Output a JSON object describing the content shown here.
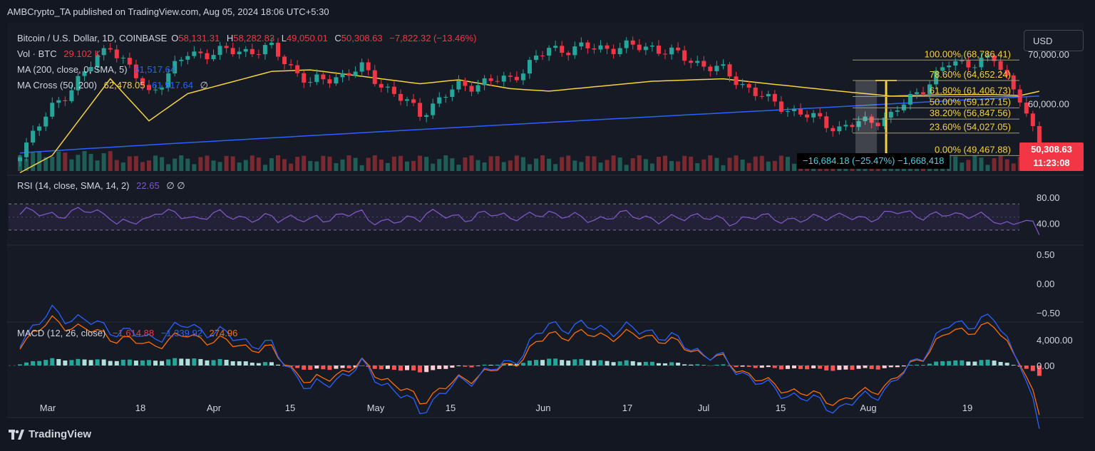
{
  "header": {
    "publisher": "AMBCrypto_TA published on TradingView.com, Aug 05, 2024 18:06 UTC+5:30"
  },
  "currency_button": "USD",
  "legend": {
    "symbol": "Bitcoin / U.S. Dollar, 1D, COINBASE",
    "o_label": "O",
    "o": "58,131.31",
    "h_label": "H",
    "h": "58,282.83",
    "l_label": "L",
    "l": "49,050.01",
    "c_label": "C",
    "c": "50,308.63",
    "change": "−7,822.32 (−13.46%)",
    "vol_label": "Vol · BTC",
    "vol": "29.102 K",
    "ma_label": "MA (200, close, 0, SMA, 5)",
    "ma": "61,517.64",
    "macross_label": "MA Cross (50, 200)",
    "macross_fast": "62,478.05",
    "macross_slow": "61,517.64",
    "macross_extra": "∅",
    "rsi_label": "RSI (14, close, SMA, 14, 2)",
    "rsi": "22.65",
    "rsi_extra": "∅ ∅",
    "macd_label": "MACD (12, 26, close)",
    "macd_hist": "−1,614.88",
    "macd_line": "−1,339.92",
    "macd_signal": "274.96"
  },
  "price_tag": {
    "price": "50,308.63",
    "countdown": "11:23:08"
  },
  "measure_label": "−16,684.18 (−25.47%) −1,668,418",
  "footer": {
    "brand": "TradingView"
  },
  "colors": {
    "up": "#26a69a",
    "down": "#f23645",
    "ma_yellow": "#f7d23e",
    "ma_blue": "#2962ff",
    "rsi": "#7e57c2",
    "macd": "#2962ff",
    "signal": "#ff6d00",
    "fib": "#f7d23e"
  },
  "chart_data": {
    "type": "candlestick",
    "title": "Bitcoin / U.S. Dollar, 1D, COINBASE",
    "price_axis": {
      "ticks": [
        70000,
        60000
      ],
      "tick_labels": [
        "70,000.00",
        "60,000.00"
      ],
      "range": [
        47500,
        72000
      ]
    },
    "x_ticks": [
      "Mar",
      "18",
      "Apr",
      "15",
      "May",
      "15",
      "Jun",
      "17",
      "Jul",
      "15",
      "Aug",
      "19"
    ],
    "price_anchors": [
      [
        "Feb 29",
        50500,
        46000
      ],
      [
        "Mar 5",
        59000,
        49500
      ],
      [
        "Mar 14",
        72000,
        65000
      ],
      [
        "Mar 20",
        62000,
        56500
      ],
      [
        "Mar 26",
        70000,
        62000
      ],
      [
        "Apr 8",
        71000,
        66500
      ],
      [
        "Apr 14",
        64000,
        66800
      ],
      [
        "Apr 22",
        67000,
        65500
      ],
      [
        "May 1",
        58000,
        64000
      ],
      [
        "May 7",
        63500,
        64800
      ],
      [
        "May 15",
        65000,
        63000
      ],
      [
        "May 21",
        71000,
        62500
      ],
      [
        "Jun 6",
        71500,
        64500
      ],
      [
        "Jun 17",
        66500,
        65000
      ],
      [
        "Jun 24",
        60500,
        64000
      ],
      [
        "Jul 5",
        55000,
        62500
      ],
      [
        "Jul 13",
        57500,
        61500
      ],
      [
        "Jul 22",
        68000,
        61800
      ],
      [
        "Jul 29",
        68800,
        61800
      ],
      [
        "Aug 2",
        61500,
        61600
      ],
      [
        "Aug 5",
        50308.63,
        62478.05
      ]
    ],
    "ma200_range": [
      50000,
      61517.64
    ],
    "fib_levels": [
      {
        "label": "100.00% (68,786.41)",
        "price": 68786.41
      },
      {
        "label": "78.60% (64,652.24)",
        "price": 64652.24
      },
      {
        "label": "61.80% (61,406.73)",
        "price": 61406.73
      },
      {
        "label": "50.00% (59,127.15)",
        "price": 59127.15
      },
      {
        "label": "38.20% (56,847.56)",
        "price": 56847.56
      },
      {
        "label": "23.60% (54,027.05)",
        "price": 54027.05
      },
      {
        "label": "0.00% (49,467.88)",
        "price": 49467.88
      }
    ],
    "rsi": {
      "ticks": [
        80,
        40
      ],
      "tick_labels": [
        "80.00",
        "40.00"
      ],
      "range": [
        20,
        90
      ],
      "bands": [
        70,
        30
      ],
      "mid": 50,
      "last": 22.65
    },
    "empty_pane": {
      "tick_labels": [
        "0.50",
        "0.00",
        "−0.50"
      ],
      "ticks": [
        0.5,
        0,
        -0.5
      ]
    },
    "macd": {
      "ticks": [
        4000,
        0
      ],
      "tick_labels": [
        "4,000.00",
        "0.00"
      ],
      "range": [
        -3000,
        5000
      ],
      "last_hist": -1614.88,
      "last_macd": -1339.92,
      "last_signal": 274.96
    }
  }
}
